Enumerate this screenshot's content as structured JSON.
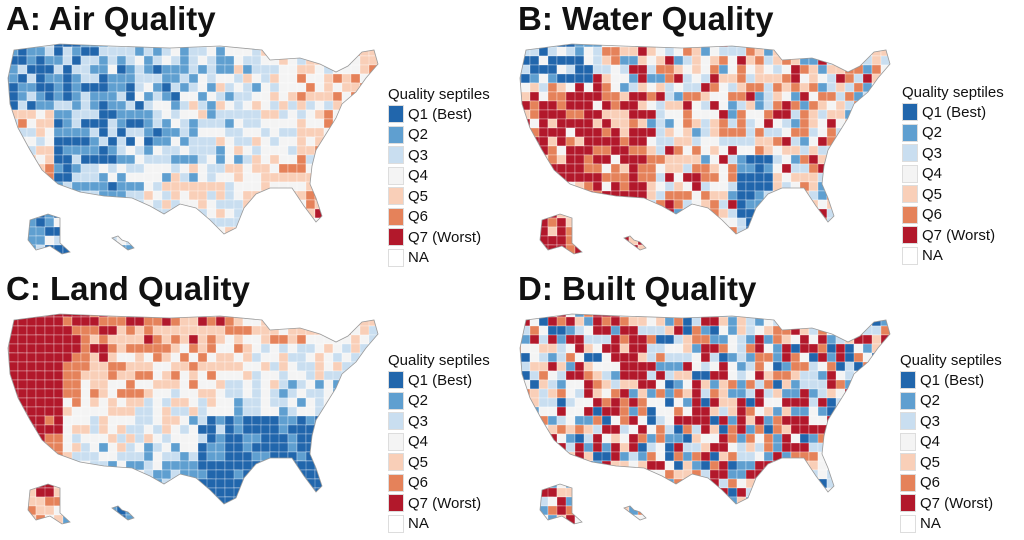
{
  "colors": {
    "Q1": "#2166ac",
    "Q2": "#5f9fd0",
    "Q3": "#c9def0",
    "Q4": "#f4f4f4",
    "Q5": "#f9cfb8",
    "Q6": "#e5825a",
    "Q7": "#b2182b",
    "NA": "#ffffff"
  },
  "legend": {
    "title": "Quality septiles",
    "items": [
      {
        "key": "Q1",
        "label": "Q1 (Best)"
      },
      {
        "key": "Q2",
        "label": "Q2"
      },
      {
        "key": "Q3",
        "label": "Q3"
      },
      {
        "key": "Q4",
        "label": "Q4"
      },
      {
        "key": "Q5",
        "label": "Q5"
      },
      {
        "key": "Q6",
        "label": "Q6"
      },
      {
        "key": "Q7",
        "label": "Q7 (Worst)"
      },
      {
        "key": "NA",
        "label": "NA"
      }
    ]
  },
  "panels": [
    {
      "id": "air",
      "title": "A: Air Quality",
      "pattern": "air"
    },
    {
      "id": "water",
      "title": "B: Water Quality",
      "pattern": "water"
    },
    {
      "id": "land",
      "title": "C: Land Quality",
      "pattern": "land"
    },
    {
      "id": "built",
      "title": "D: Built Quality",
      "pattern": "built"
    }
  ]
}
